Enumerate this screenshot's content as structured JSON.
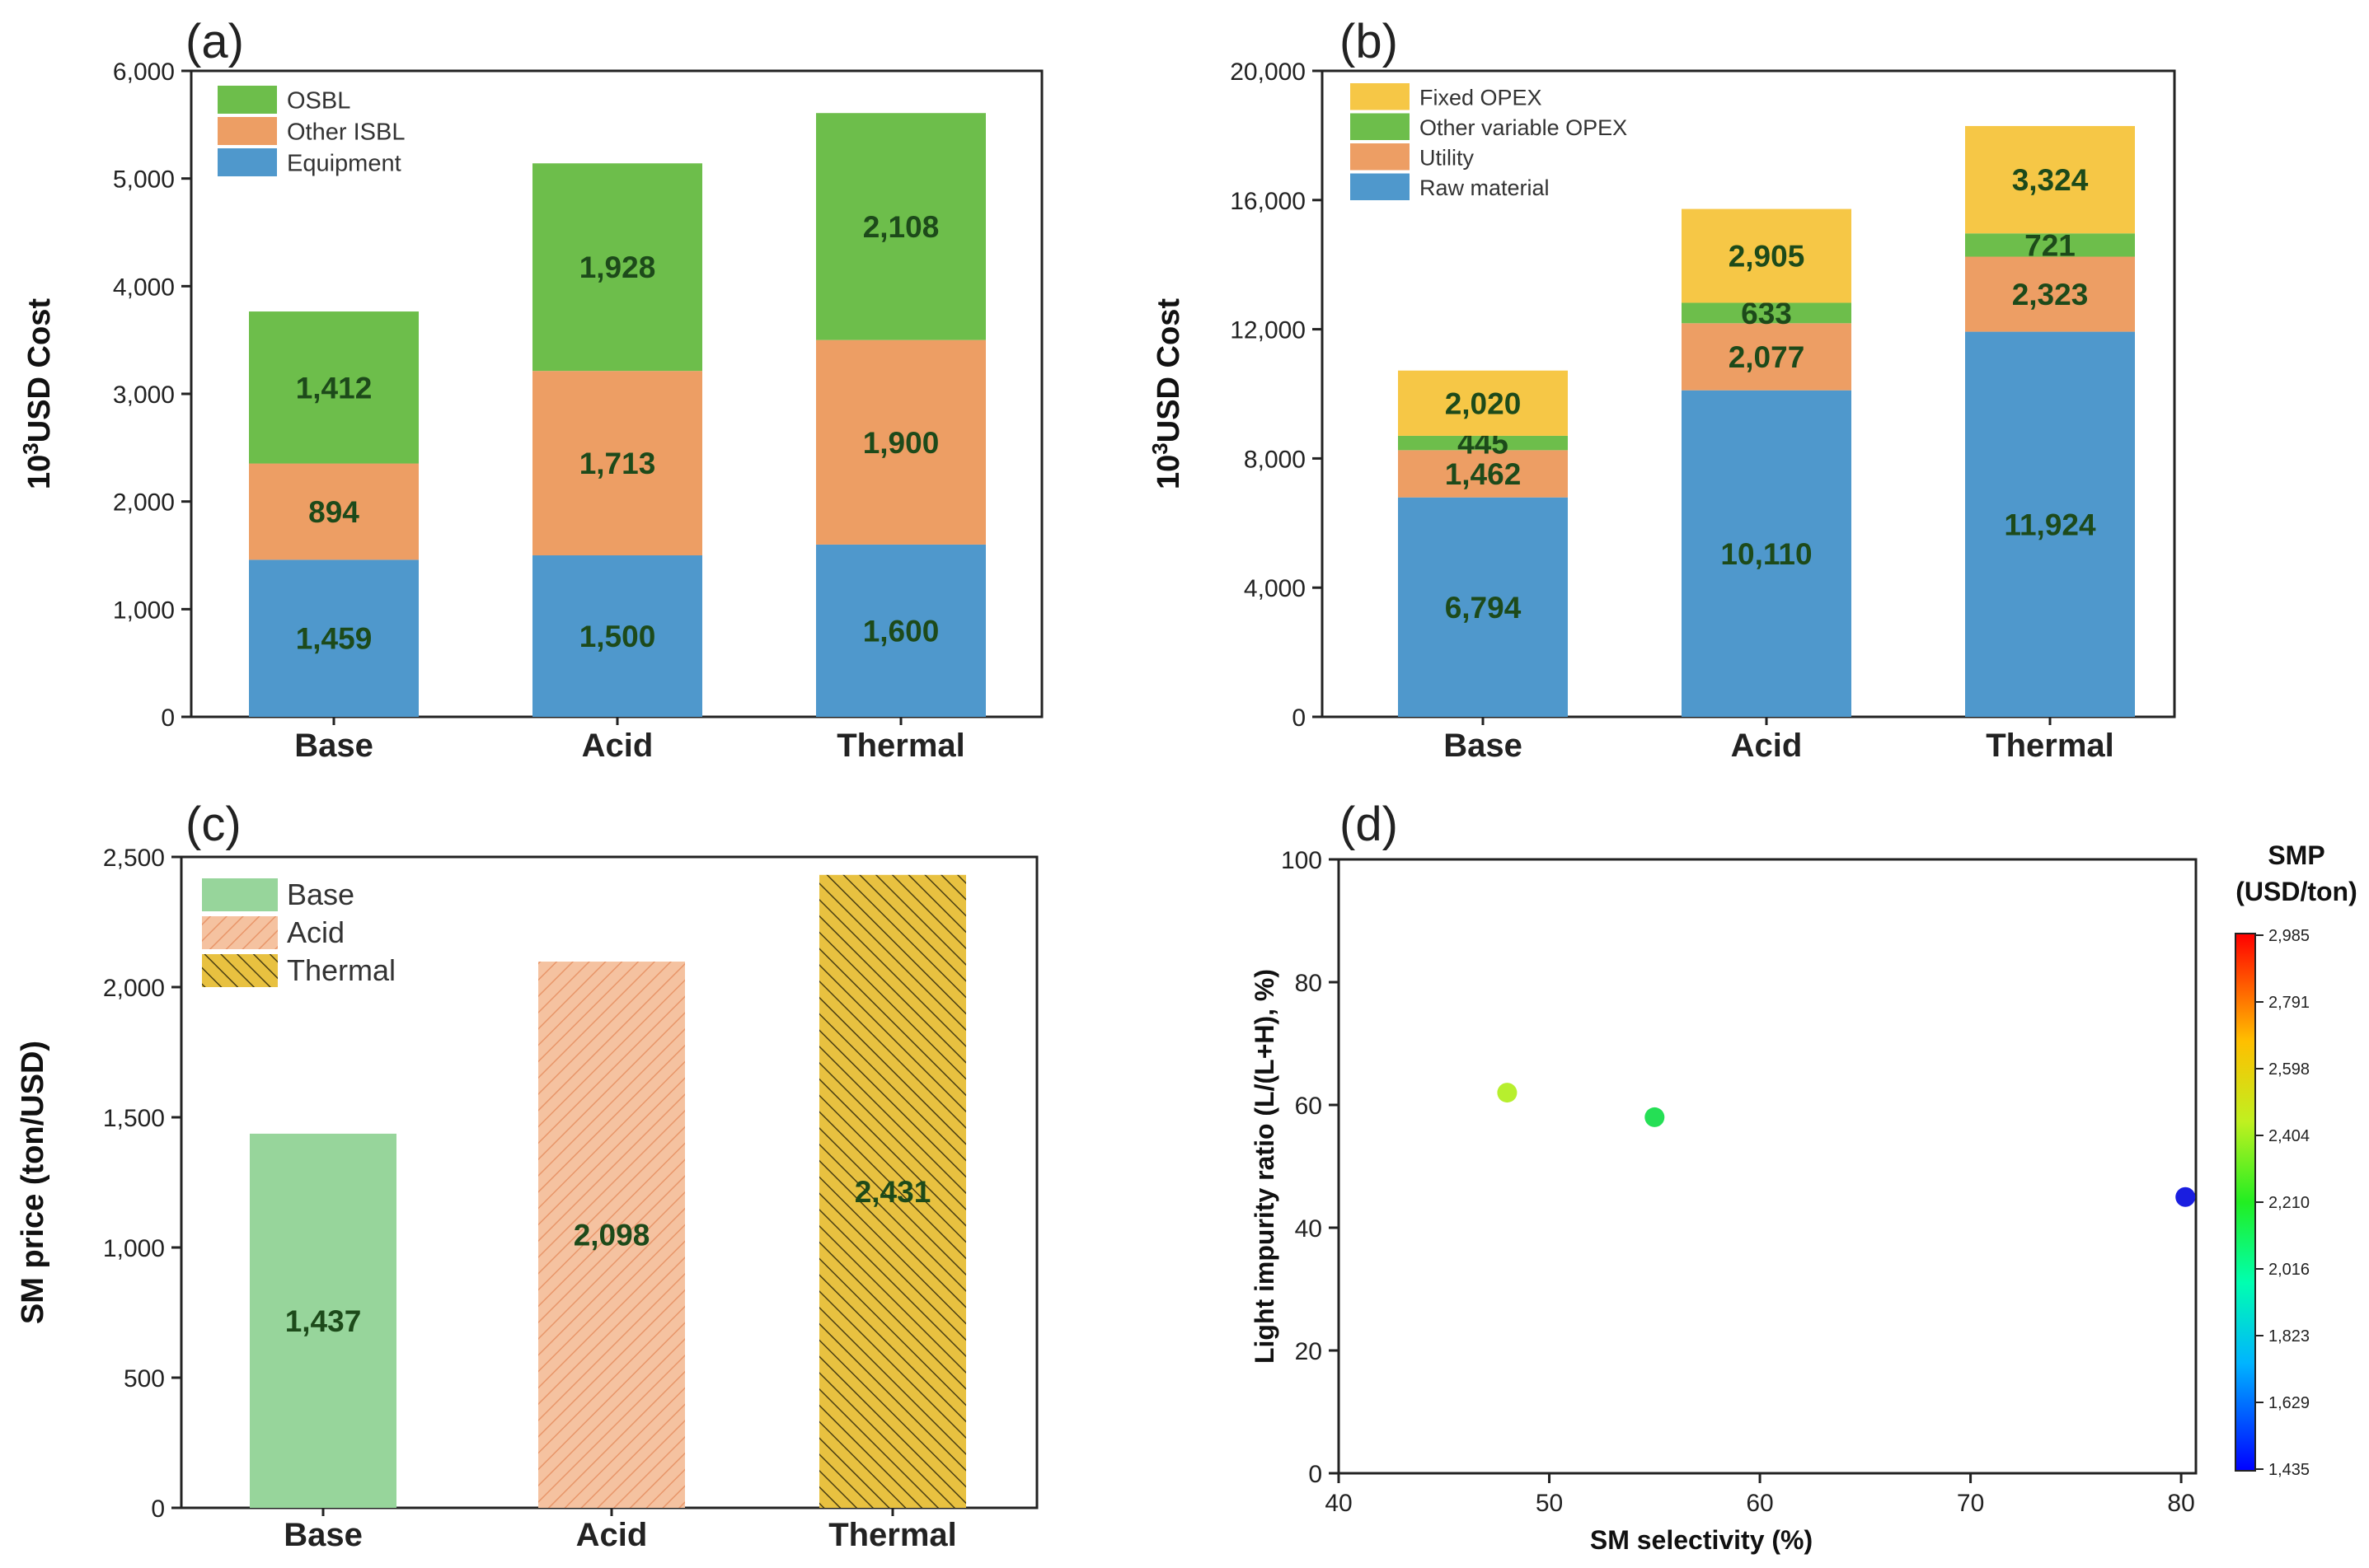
{
  "colors": {
    "green": "#6dbe4b",
    "orange": "#ed9e64",
    "blue": "#4f98cc",
    "yellow": "#f6c746",
    "light_green": "#97d59b",
    "hatch_orange_bg": "#f5c2a0",
    "hatch_orange_line": "#e8966a",
    "hatch_yellow_bg": "#e8c140",
    "hatch_yellow_line": "#4a3f12",
    "data_label": "#1d4a1a"
  },
  "chart_data": [
    {
      "panel": "(a)",
      "type": "bar",
      "stacked": true,
      "categories": [
        "Base",
        "Acid",
        "Thermal"
      ],
      "series": [
        {
          "name": "Equipment",
          "values": [
            1459,
            1500,
            1600
          ],
          "labels": [
            "1,459",
            "1,500",
            "1,600"
          ],
          "color": "#4f98cc"
        },
        {
          "name": "Other ISBL",
          "values": [
            894,
            1713,
            1900
          ],
          "labels": [
            "894",
            "1,713",
            "1,900"
          ],
          "color": "#ed9e64"
        },
        {
          "name": "OSBL",
          "values": [
            1412,
            1928,
            2108
          ],
          "labels": [
            "1,412",
            "1,928",
            "2,108"
          ],
          "color": "#6dbe4b"
        }
      ],
      "legend": [
        "OSBL",
        "Other ISBL",
        "Equipment"
      ],
      "ylabel": "10",
      "ylabel_sup": "3",
      "ylabel_rest": "USD Cost",
      "ylim": [
        0,
        6000
      ],
      "yticks": [
        0,
        1000,
        2000,
        3000,
        4000,
        5000,
        6000
      ],
      "ytick_labels": [
        "0",
        "1,000",
        "2,000",
        "3,000",
        "4,000",
        "5,000",
        "6,000"
      ],
      "legend_position": "top-left"
    },
    {
      "panel": "(b)",
      "type": "bar",
      "stacked": true,
      "categories": [
        "Base",
        "Acid",
        "Thermal"
      ],
      "series": [
        {
          "name": "Raw material",
          "values": [
            6794,
            10110,
            11924
          ],
          "labels": [
            "6,794",
            "10,110",
            "11,924"
          ],
          "color": "#4f98cc"
        },
        {
          "name": "Utility",
          "values": [
            1462,
            2077,
            2323
          ],
          "labels": [
            "1,462",
            "2,077",
            "2,323"
          ],
          "color": "#ed9e64"
        },
        {
          "name": "Other variable OPEX",
          "values": [
            445,
            633,
            721
          ],
          "labels": [
            "445",
            "633",
            "721"
          ],
          "color": "#6dbe4b"
        },
        {
          "name": "Fixed OPEX",
          "values": [
            2020,
            2905,
            3324
          ],
          "labels": [
            "2,020",
            "2,905",
            "3,324"
          ],
          "color": "#f6c746"
        }
      ],
      "legend": [
        "Fixed OPEX",
        "Other variable OPEX",
        "Utility",
        "Raw material"
      ],
      "ylabel": "10",
      "ylabel_sup": "3",
      "ylabel_rest": "USD Cost",
      "ylim": [
        0,
        20000
      ],
      "yticks": [
        0,
        4000,
        8000,
        12000,
        16000,
        20000
      ],
      "ytick_labels": [
        "0",
        "4,000",
        "8,000",
        "12,000",
        "16,000",
        "20,000"
      ],
      "legend_position": "top-left"
    },
    {
      "panel": "(c)",
      "type": "bar",
      "categories": [
        "Base",
        "Acid",
        "Thermal"
      ],
      "values": [
        1437,
        2098,
        2431
      ],
      "labels": [
        "1,437",
        "2,098",
        "2,431"
      ],
      "legend": [
        "Base",
        "Acid",
        "Thermal"
      ],
      "ylabel": "SM price (ton/USD)",
      "ylim": [
        0,
        2500
      ],
      "yticks": [
        0,
        500,
        1000,
        1500,
        2000,
        2500
      ],
      "ytick_labels": [
        "0",
        "500",
        "1,000",
        "1,500",
        "2,000",
        "2,500"
      ],
      "legend_position": "top-left"
    },
    {
      "panel": "(d)",
      "type": "scatter",
      "points": [
        {
          "x": 48,
          "y": 62,
          "color": "#b7ef2e"
        },
        {
          "x": 55,
          "y": 58,
          "color": "#25df55"
        },
        {
          "x": 80.2,
          "y": 45,
          "color": "#1a1ee0"
        }
      ],
      "xlabel": "SM selectivity (%)",
      "ylabel": "Light impurity ratio (L/(L+H), %)",
      "xlim": [
        40,
        80.7
      ],
      "ylim": [
        0,
        100
      ],
      "xticks": [
        40,
        50,
        60,
        70,
        80
      ],
      "yticks": [
        0,
        20,
        40,
        60,
        80,
        100
      ],
      "colorbar": {
        "title_line1": "SMP",
        "title_line2": "(USD/ton)",
        "range": [
          1435,
          2985
        ],
        "ticks": [
          "2,985",
          "2,791",
          "2,598",
          "2,404",
          "2,210",
          "2,016",
          "1,823",
          "1,629",
          "1,435"
        ]
      }
    }
  ]
}
